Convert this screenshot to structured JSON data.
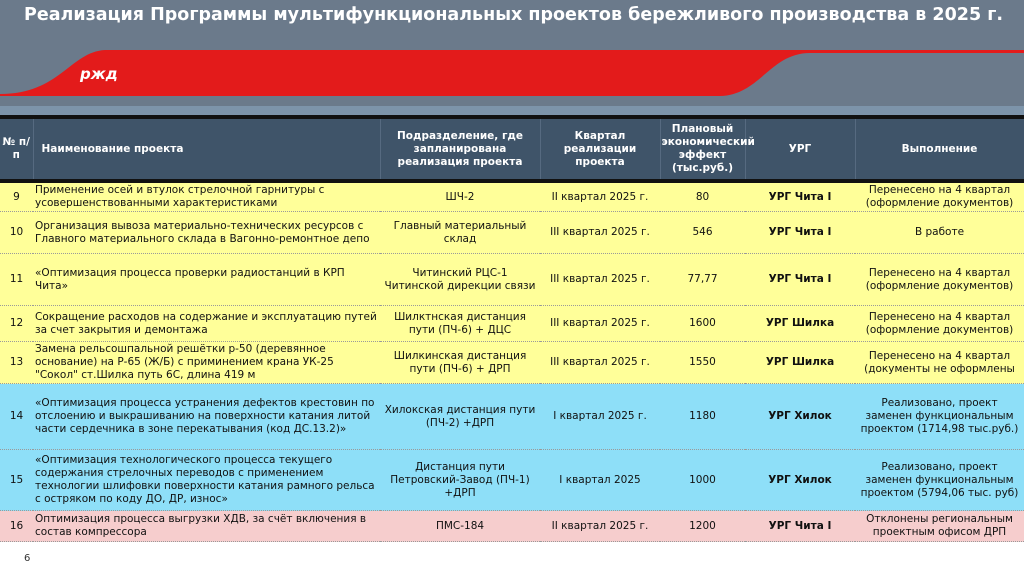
{
  "title": "Реализация Программы мультифункциональных проектов бережливого производства в 2025 г.",
  "logo": "РЖД",
  "colors": {
    "header": "#6b7a8b",
    "brand_red": "#e31b1b",
    "table_header": "#3f5469",
    "in_progress": "#ffff99",
    "done": "#8edff8",
    "rejected": "#f6cdcd"
  },
  "columns": [
    "№ п/п",
    "Наименование проекта",
    "Подразделение, где запланирована реализация проекта",
    "Квартал реализации проекта",
    "Плановый экономический эффект (тыс.руб.)",
    "УРГ",
    "Выполнение"
  ],
  "rows": [
    {
      "num": "9",
      "name": "Применение осей и втулок стрелочной гарнитуры с усовершенствованными характеристиками",
      "unit": "ШЧ-2",
      "quarter": "II квартал 2025 г.",
      "effect": "80",
      "urg": "УРГ Чита I",
      "status": "Перенесено на 4 квартал (оформление документов)",
      "color": "y"
    },
    {
      "num": "10",
      "name": "Организация вывоза материально-технических ресурсов с Главного материального склада в Вагонно-ремонтное депо",
      "unit": "Главный материальный склад",
      "quarter": "III квартал 2025 г.",
      "effect": "546",
      "urg": "УРГ Чита I",
      "status": "В работе",
      "color": "y"
    },
    {
      "num": "11",
      "name": "«Оптимизация процесса проверки радиостанций в КРП Чита»",
      "unit": "Читинский РЦС-1 Читинской дирекции связи",
      "quarter": "III квартал 2025 г.",
      "effect": "77,77",
      "urg": "УРГ Чита I",
      "status": "Перенесено на 4 квартал (оформление документов)",
      "color": "y"
    },
    {
      "num": "12",
      "name": "Сокращение расходов на содержание и эксплуатацию путей за счет закрытия и демонтажа",
      "unit": "Шилктнская дистанция пути (ПЧ-6) + ДЦС",
      "quarter": "III квартал 2025 г.",
      "effect": "1600",
      "urg": "УРГ Шилка",
      "status": "Перенесено на 4 квартал (оформление документов)",
      "color": "y"
    },
    {
      "num": "13",
      "name": "Замена рельсошпальной решётки р-50 (деревянное основание) на Р-65 (Ж/Б) с приминением крана УК-25 \"Сокол\" ст.Шилка путь 6С, длина 419 м",
      "unit": "Шилкинская дистанция пути (ПЧ-6) + ДРП",
      "quarter": "III квартал 2025 г.",
      "effect": "1550",
      "urg": "УРГ Шилка",
      "status": "Перенесено на 4 квартал (документы не оформлены",
      "color": "y"
    },
    {
      "num": "14",
      "name": "«Оптимизация процесса устранения дефектов крестовин по отслоению и выкрашиванию на поверхности катания литой части сердечника в зоне перекатывания (код ДС.13.2)»",
      "unit": "Хилокская дистанция пути (ПЧ-2) +ДРП",
      "quarter": "I квартал 2025 г.",
      "effect": "1180",
      "urg": "УРГ Хилок",
      "status": "Реализовано, проект заменен функциональным проектом (1714,98 тыс.руб.)",
      "color": "b"
    },
    {
      "num": "15",
      "name": "«Оптимизация технологического процесса текущего содержания стрелочных переводов с применением технологии шлифовки поверхности катания рамного рельса с остряком по коду ДО, ДР, износ»",
      "unit": "Дистанция пути Петровский-Завод (ПЧ-1) +ДРП",
      "quarter": "I квартал 2025",
      "effect": "1000",
      "urg": "УРГ Хилок",
      "status": "Реализовано, проект заменен функциональным проектом (5794,06 тыс. руб)",
      "color": "b"
    },
    {
      "num": "16",
      "name": "Оптимизация процесса выгрузки ХДВ, за счёт включения в состав компрессора",
      "unit": "ПМС-184",
      "quarter": "II квартал 2025 г.",
      "effect": "1200",
      "urg": "УРГ Чита I",
      "status": "Отклонены региональным проектным офисом ДРП",
      "color": "p"
    }
  ],
  "page_number": "6"
}
